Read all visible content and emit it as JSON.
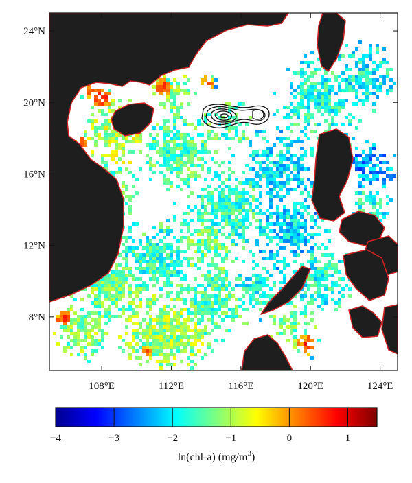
{
  "map": {
    "lat_labels": [
      "24°N",
      "20°N",
      "16°N",
      "12°N",
      "8°N"
    ],
    "lon_labels": [
      "108°E",
      "112°E",
      "116°E",
      "120°E",
      "124°E"
    ],
    "lat_values": [
      24,
      20,
      16,
      12,
      8
    ],
    "lon_values": [
      108,
      112,
      116,
      120,
      124
    ],
    "lon_range": [
      105,
      125
    ],
    "lat_range": [
      5,
      25
    ],
    "land_color": "#1e1e1e",
    "coast_color": "#cc2222",
    "background_color": "#ffffff"
  },
  "colorbar": {
    "ticks": [
      -4,
      -3,
      -2,
      -1,
      0,
      1
    ],
    "tick_labels": [
      "−4",
      "−3",
      "−2",
      "−1",
      "0",
      "1"
    ],
    "range": [
      -4,
      1.5
    ],
    "colormap": "jet",
    "title_main": "ln(chl-a) (mg/m",
    "title_sup": "3",
    "title_end": ")"
  }
}
